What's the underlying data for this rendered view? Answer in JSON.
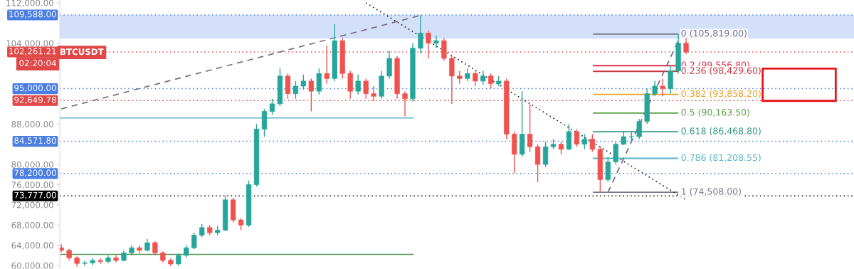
{
  "chart_data": {
    "type": "candlestick",
    "categories": [
      null,
      null,
      null,
      null,
      null,
      null,
      null,
      null,
      null,
      null,
      null,
      null,
      null,
      null,
      null,
      null,
      null,
      null,
      null,
      null,
      null,
      null,
      null,
      null,
      null,
      null,
      null,
      null,
      null,
      null,
      null,
      null,
      null,
      null,
      null,
      null,
      null,
      null,
      null,
      null,
      null,
      null,
      null,
      null,
      null,
      null,
      null,
      null,
      null,
      null,
      null,
      null,
      null,
      null,
      null,
      null,
      null,
      null,
      null,
      null,
      null,
      null,
      null,
      null,
      null,
      null,
      null,
      null,
      null,
      null,
      null,
      null,
      null,
      null,
      null,
      null,
      null,
      null,
      null,
      null,
      null
    ],
    "ohlc": [
      [
        63500,
        64200,
        62600,
        63000
      ],
      [
        63000,
        63300,
        61000,
        61500
      ],
      [
        61500,
        61800,
        59800,
        60400
      ],
      [
        60400,
        61000,
        59900,
        60500
      ],
      [
        60500,
        61500,
        60100,
        61000
      ],
      [
        61000,
        61400,
        60300,
        60800
      ],
      [
        60800,
        62000,
        60500,
        61500
      ],
      [
        61500,
        62000,
        60600,
        61000
      ],
      [
        61000,
        63000,
        60800,
        62500
      ],
      [
        62500,
        64000,
        62000,
        63500
      ],
      [
        63500,
        64000,
        62400,
        63000
      ],
      [
        63000,
        65200,
        62800,
        64500
      ],
      [
        64500,
        64800,
        62000,
        62500
      ],
      [
        62500,
        62800,
        60600,
        61000
      ],
      [
        61000,
        61400,
        59900,
        60300
      ],
      [
        60300,
        62400,
        60000,
        62000
      ],
      [
        62000,
        64000,
        61600,
        63500
      ],
      [
        63500,
        66500,
        63200,
        66000
      ],
      [
        66000,
        68200,
        65600,
        67500
      ],
      [
        67500,
        68000,
        66000,
        66500
      ],
      [
        66500,
        67800,
        66000,
        67000
      ],
      [
        67000,
        73800,
        66800,
        73000
      ],
      [
        73000,
        73400,
        68500,
        69000
      ],
      [
        69000,
        69400,
        67000,
        68000
      ],
      [
        68000,
        76800,
        67600,
        76000
      ],
      [
        76000,
        88000,
        75600,
        87000
      ],
      [
        87000,
        91000,
        85500,
        90500
      ],
      [
        90500,
        93000,
        89800,
        92000
      ],
      [
        92000,
        99000,
        91500,
        97500
      ],
      [
        97500,
        98000,
        93000,
        94000
      ],
      [
        94000,
        96500,
        93000,
        95500
      ],
      [
        95500,
        97800,
        94800,
        96500
      ],
      [
        96500,
        97000,
        90500,
        94500
      ],
      [
        94500,
        99000,
        93800,
        98000
      ],
      [
        98000,
        103500,
        96000,
        97000
      ],
      [
        97000,
        107800,
        96500,
        104500
      ],
      [
        104500,
        105000,
        97000,
        98000
      ],
      [
        98000,
        98500,
        93000,
        94500
      ],
      [
        94500,
        97800,
        93800,
        96500
      ],
      [
        96500,
        97000,
        93000,
        94000
      ],
      [
        94000,
        95500,
        92500,
        93500
      ],
      [
        93500,
        98500,
        93000,
        97500
      ],
      [
        97500,
        102500,
        97000,
        101000
      ],
      [
        101000,
        101500,
        93000,
        94000
      ],
      [
        94000,
        94500,
        89500,
        93000
      ],
      [
        93000,
        104000,
        92500,
        103000
      ],
      [
        103000,
        109588,
        102000,
        106000
      ],
      [
        106000,
        106500,
        101000,
        104000
      ],
      [
        104000,
        105500,
        103000,
        104500
      ],
      [
        104500,
        105000,
        100500,
        101000
      ],
      [
        101000,
        101500,
        92000,
        97500
      ],
      [
        97500,
        98500,
        96000,
        97000
      ],
      [
        97000,
        99000,
        96500,
        98000
      ],
      [
        98000,
        98500,
        95500,
        96500
      ],
      [
        96500,
        98500,
        95800,
        97500
      ],
      [
        97500,
        98000,
        95000,
        96000
      ],
      [
        96000,
        97500,
        95500,
        96500
      ],
      [
        96500,
        97000,
        85000,
        86000
      ],
      [
        86000,
        86500,
        78300,
        82000
      ],
      [
        82000,
        94500,
        81500,
        86000
      ],
      [
        86000,
        92000,
        82500,
        83500
      ],
      [
        83500,
        84000,
        76500,
        80000
      ],
      [
        80000,
        84500,
        79500,
        83500
      ],
      [
        83500,
        85000,
        83000,
        84000
      ],
      [
        84000,
        84500,
        82000,
        83000
      ],
      [
        83000,
        88000,
        82800,
        86500
      ],
      [
        86500,
        87000,
        83500,
        84000
      ],
      [
        84000,
        86000,
        83000,
        85000
      ],
      [
        85000,
        86000,
        82500,
        83000
      ],
      [
        83000,
        83500,
        74508,
        77000
      ],
      [
        77000,
        81500,
        76500,
        80500
      ],
      [
        80500,
        84500,
        80000,
        84000
      ],
      [
        84000,
        86500,
        83800,
        85500
      ],
      [
        85500,
        86500,
        84500,
        85500
      ],
      [
        85500,
        89000,
        85000,
        88500
      ],
      [
        88500,
        95000,
        88000,
        94000
      ],
      [
        94000,
        96500,
        93500,
        95500
      ],
      [
        95500,
        97000,
        93500,
        95000
      ],
      [
        95000,
        99500,
        94000,
        98500
      ],
      [
        98500,
        105819,
        98000,
        104000
      ],
      [
        104000,
        105000,
        101800,
        102261.21
      ]
    ],
    "colors": [
      "#ef5350",
      "#ef5350",
      "#ef5350",
      "#26a69a",
      "#26a69a",
      "#ef5350",
      "#26a69a",
      "#ef5350",
      "#26a69a",
      "#26a69a",
      "#ef5350",
      "#26a69a",
      "#ef5350",
      "#ef5350",
      "#ef5350",
      "#26a69a",
      "#26a69a",
      "#26a69a",
      "#26a69a",
      "#ef5350",
      "#26a69a",
      "#26a69a",
      "#ef5350",
      "#ef5350",
      "#26a69a",
      "#26a69a",
      "#26a69a",
      "#26a69a",
      "#26a69a",
      "#ef5350",
      "#26a69a",
      "#26a69a",
      "#ef5350",
      "#26a69a",
      "#ef5350",
      "#26a69a",
      "#ef5350",
      "#ef5350",
      "#26a69a",
      "#ef5350",
      "#ef5350",
      "#26a69a",
      "#26a69a",
      "#ef5350",
      "#ef5350",
      "#26a69a",
      "#26a69a",
      "#ef5350",
      "#26a69a",
      "#ef5350",
      "#ef5350",
      "#ef5350",
      "#26a69a",
      "#ef5350",
      "#26a69a",
      "#ef5350",
      "#26a69a",
      "#ef5350",
      "#ef5350",
      "#26a69a",
      "#ef5350",
      "#ef5350",
      "#26a69a",
      "#26a69a",
      "#ef5350",
      "#26a69a",
      "#ef5350",
      "#26a69a",
      "#ef5350",
      "#ef5350",
      "#26a69a",
      "#26a69a",
      "#26a69a",
      "#26a69a",
      "#26a69a",
      "#26a69a",
      "#26a69a",
      "#ef5350",
      "#26a69a",
      "#26a69a",
      "#ef5350"
    ],
    "ylim": [
      59300,
      112550
    ],
    "yticks": [
      {
        "value": 60000,
        "label": "60,000.00"
      },
      {
        "value": 64000,
        "label": "64,000.00"
      },
      {
        "value": 68000,
        "label": "68,000.00"
      },
      {
        "value": 72000,
        "label": "72,000.00"
      },
      {
        "value": 76000,
        "label": "76,000.00"
      },
      {
        "value": 80000,
        "label": "80,000.00"
      },
      {
        "value": 88000,
        "label": "88,000.00"
      },
      {
        "value": 104000,
        "label": "104,000.00"
      },
      {
        "value": 112000,
        "label": "112,000.00"
      }
    ],
    "series": [
      {
        "type": "line",
        "values": [
          91000,
          null,
          null,
          null,
          null,
          null,
          null,
          null,
          null,
          null,
          null,
          null,
          null,
          null,
          null,
          null,
          null,
          null,
          null,
          null,
          null,
          null,
          null,
          null,
          null,
          null,
          null,
          null,
          null,
          null,
          null,
          null,
          null,
          null,
          null,
          null,
          null,
          null,
          null,
          null,
          null,
          null,
          null,
          null,
          null,
          null,
          109500,
          null,
          null,
          null,
          null,
          null,
          null,
          null,
          null,
          null,
          null,
          null,
          null,
          null,
          null,
          null,
          null,
          null,
          null,
          null,
          null,
          null,
          null,
          null,
          null,
          null,
          null,
          null,
          null,
          null,
          null,
          null,
          null,
          null,
          null
        ],
        "color": "#7a6a7a",
        "line_style": "dashed"
      },
      {
        "type": "line",
        "values": [
          null,
          null,
          null,
          null,
          null,
          null,
          null,
          null,
          null,
          null,
          null,
          null,
          null,
          null,
          null,
          null,
          null,
          null,
          null,
          null,
          null,
          null,
          null,
          null,
          null,
          null,
          null,
          null,
          null,
          null,
          null,
          null,
          null,
          null,
          null,
          null,
          null,
          null,
          null,
          112000,
          null,
          null,
          null,
          null,
          null,
          null,
          null,
          null,
          null,
          null,
          null,
          null,
          null,
          null,
          null,
          null,
          null,
          null,
          null,
          null,
          null,
          null,
          null,
          null,
          null,
          null,
          null,
          null,
          null,
          null,
          null,
          null,
          null,
          null,
          null,
          null,
          null,
          null,
          null,
          null,
          73000
        ],
        "color": "#222222",
        "line_style": "dotted"
      },
      {
        "type": "line",
        "values": [
          null,
          null,
          null,
          null,
          null,
          null,
          null,
          null,
          null,
          null,
          null,
          null,
          null,
          null,
          null,
          null,
          null,
          null,
          null,
          null,
          null,
          null,
          null,
          null,
          null,
          null,
          null,
          null,
          null,
          null,
          null,
          null,
          null,
          null,
          null,
          null,
          null,
          null,
          null,
          null,
          null,
          null,
          null,
          null,
          null,
          null,
          null,
          null,
          null,
          null,
          null,
          null,
          null,
          null,
          null,
          null,
          null,
          null,
          null,
          null,
          null,
          null,
          null,
          null,
          null,
          null,
          null,
          null,
          null,
          null,
          74500,
          null,
          null,
          null,
          null,
          null,
          null,
          null,
          null,
          104500,
          null
        ],
        "color": "#6a6a8a",
        "line_style": "dashed"
      }
    ],
    "bands": [
      {
        "axis": "y",
        "from": 104900,
        "to": 109588,
        "color": "#d4e0fa"
      }
    ],
    "ref_lines": [
      {
        "axis": "y",
        "value": 109588,
        "label": "109,588.00",
        "color": "#4a7ee0",
        "line_style": "dotted"
      },
      {
        "axis": "y",
        "value": 102261.21,
        "label": "102,261.21",
        "color": "#e04848",
        "line_style": "dotted"
      },
      {
        "axis": "y",
        "value": 95000,
        "label": "95,000.00",
        "color": "#4a7ee0",
        "line_style": "dotted"
      },
      {
        "axis": "y",
        "value": 92649.78,
        "label": "92,649.78",
        "color": "#e04848",
        "line_style": "dotted"
      },
      {
        "axis": "y",
        "value": 84571.8,
        "label": "84,571.80",
        "color": "#4a7ee0",
        "line_style": "dotted"
      },
      {
        "axis": "y",
        "value": 78200,
        "label": "78,200.00",
        "color": "#4a7ee0",
        "line_style": "dotted"
      },
      {
        "axis": "y",
        "value": 73777,
        "label": "73,777.00",
        "color": "#000000",
        "line_style": "dotted"
      },
      {
        "axis": "y",
        "value": 89200,
        "color": "#5ab4c8",
        "line_style": "solid"
      },
      {
        "axis": "y",
        "value": 62200,
        "color": "#5a9a5a",
        "line_style": "solid"
      },
      {
        "axis": "y",
        "value": 105819,
        "label": "0 (105,819.00)",
        "color": "#787b86",
        "line_style": "solid"
      },
      {
        "axis": "y",
        "value": 99556.8,
        "label": "0.2 (99,556.80)",
        "color": "#e0324f",
        "line_style": "solid"
      },
      {
        "axis": "y",
        "value": 98429.6,
        "label": "0.236 (98,429.60)",
        "color": "#c83a46",
        "line_style": "solid"
      },
      {
        "axis": "y",
        "value": 93858.2,
        "label": "0.382 (93,858.20)",
        "color": "#f0a020",
        "line_style": "solid"
      },
      {
        "axis": "y",
        "value": 90163.5,
        "label": "0.5 (90,163.50)",
        "color": "#5aa04a",
        "line_style": "solid"
      },
      {
        "axis": "y",
        "value": 86468.8,
        "label": "0.618 (86,468.80)",
        "color": "#3a9a8a",
        "line_style": "solid"
      },
      {
        "axis": "y",
        "value": 81208.55,
        "label": "0.786 (81,208.55)",
        "color": "#5ab4c8",
        "line_style": "solid"
      },
      {
        "axis": "y",
        "value": 74508,
        "label": "1 (74,508.00)",
        "color": "#787b86",
        "line_style": "solid"
      }
    ],
    "annotations": [
      "BTCUSDT",
      "02:20:04"
    ],
    "grid": false
  }
}
